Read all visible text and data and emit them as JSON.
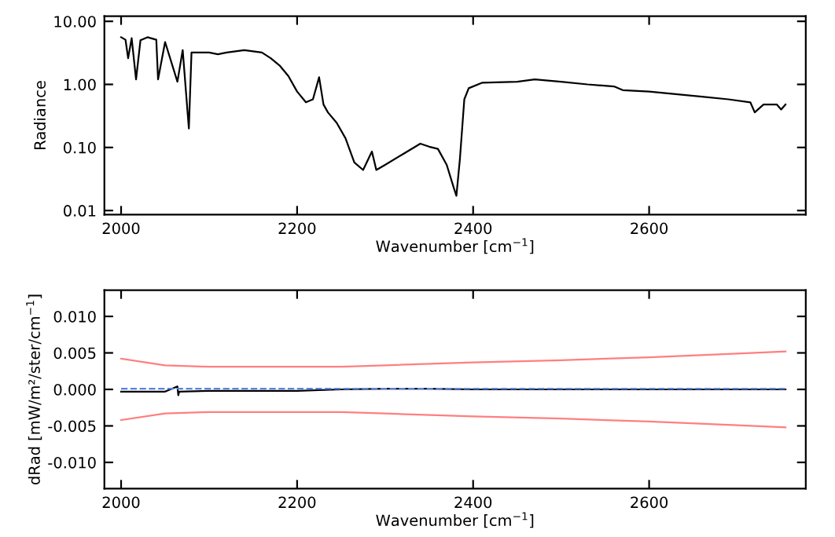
{
  "chart_data": [
    {
      "type": "line",
      "xlabel": "Wavenumber [cm$^{−1}$]",
      "ylabel": "Radiance",
      "log": "y",
      "grid": false,
      "legend": false,
      "xlim": [
        1981,
        2778
      ],
      "xticks": [
        2000,
        2200,
        2400,
        2600
      ],
      "ylim": [
        0.0086,
        12.1
      ],
      "yticks": [
        {
          "value": 0.01,
          "label": "0.01"
        },
        {
          "value": 0.1,
          "label": "0.10"
        },
        {
          "value": 1,
          "label": "1.00"
        },
        {
          "value": 10,
          "label": "10.00"
        }
      ],
      "series": [
        {
          "color": "#000000",
          "line_style": "solid",
          "x": [
            2000,
            2005,
            2008,
            2012,
            2017,
            2022,
            2030,
            2040,
            2042,
            2050,
            2064,
            2070,
            2077,
            2080,
            2090,
            2100,
            2110,
            2120,
            2140,
            2160,
            2170,
            2180,
            2190,
            2200,
            2210,
            2218,
            2225,
            2230,
            2235,
            2245,
            2255,
            2265,
            2275,
            2285,
            2290,
            2300,
            2320,
            2340,
            2350,
            2360,
            2370,
            2378,
            2381,
            2385,
            2390,
            2395,
            2410,
            2450,
            2470,
            2500,
            2530,
            2560,
            2570,
            2600,
            2630,
            2660,
            2690,
            2715,
            2720,
            2730,
            2745,
            2750,
            2755
          ],
          "values": [
            5.6,
            5.1,
            2.6,
            5.4,
            1.2,
            5.0,
            5.6,
            5.1,
            1.2,
            4.7,
            1.1,
            3.5,
            0.2,
            3.2,
            3.2,
            3.2,
            3.0,
            3.2,
            3.5,
            3.2,
            2.6,
            2.0,
            1.36,
            0.77,
            0.52,
            0.58,
            1.3,
            0.48,
            0.36,
            0.245,
            0.14,
            0.058,
            0.044,
            0.086,
            0.044,
            0.053,
            0.078,
            0.115,
            0.103,
            0.095,
            0.053,
            0.023,
            0.0171,
            0.066,
            0.58,
            0.87,
            1.06,
            1.1,
            1.2,
            1.1,
            1.0,
            0.93,
            0.81,
            0.77,
            0.7,
            0.64,
            0.58,
            0.52,
            0.36,
            0.48,
            0.48,
            0.4,
            0.48
          ]
        }
      ]
    },
    {
      "type": "line",
      "xlabel": "Wavenumber [cm$^{−1}$]",
      "ylabel": "dRad [mW/m²/ster/cm$^{−1}$]",
      "grid": false,
      "legend": false,
      "xlim": [
        1981,
        2778
      ],
      "xticks": [
        2000,
        2200,
        2400,
        2600
      ],
      "ylim": [
        -0.0136,
        0.0136
      ],
      "yticks": [
        {
          "value": -0.01,
          "label": "-0.010"
        },
        {
          "value": -0.005,
          "label": "-0.005"
        },
        {
          "value": 0,
          "label": "0.000"
        },
        {
          "value": 0.005,
          "label": "0.005"
        },
        {
          "value": 0.01,
          "label": "0.010"
        }
      ],
      "series": [
        {
          "color": "#ff7f7f",
          "line_style": "solid",
          "x": [
            2000,
            2050,
            2100,
            2250,
            2300,
            2400,
            2500,
            2600,
            2700,
            2755
          ],
          "values": [
            0.0042,
            0.0033,
            0.0031,
            0.0031,
            0.0033,
            0.0037,
            0.004,
            0.0044,
            0.0049,
            0.0052
          ]
        },
        {
          "color": "#ff7f7f",
          "line_style": "solid",
          "x": [
            2000,
            2050,
            2100,
            2250,
            2300,
            2400,
            2500,
            2600,
            2700,
            2755
          ],
          "values": [
            -0.0042,
            -0.0033,
            -0.0031,
            -0.0031,
            -0.0033,
            -0.0037,
            -0.004,
            -0.0044,
            -0.0049,
            -0.0052
          ]
        },
        {
          "color": "#000000",
          "line_style": "solid",
          "x": [
            2000,
            2050,
            2064,
            2065,
            2066,
            2100,
            2200,
            2250,
            2300,
            2350,
            2400,
            2500,
            2600,
            2700,
            2755
          ],
          "values": [
            -0.0003,
            -0.0003,
            0.0004,
            -0.0008,
            -0.0003,
            -0.0002,
            -0.0002,
            0.0,
            0.0001,
            0.0001,
            0.0,
            0.0,
            0.0,
            0.0,
            0.0
          ]
        },
        {
          "color": "#5a82d8",
          "line_style": "dashed",
          "x": [
            2000,
            2200,
            2400,
            2600,
            2755
          ],
          "values": [
            0.0001,
            0.0001,
            0.0001,
            0.0001,
            0.0001
          ]
        }
      ]
    }
  ]
}
